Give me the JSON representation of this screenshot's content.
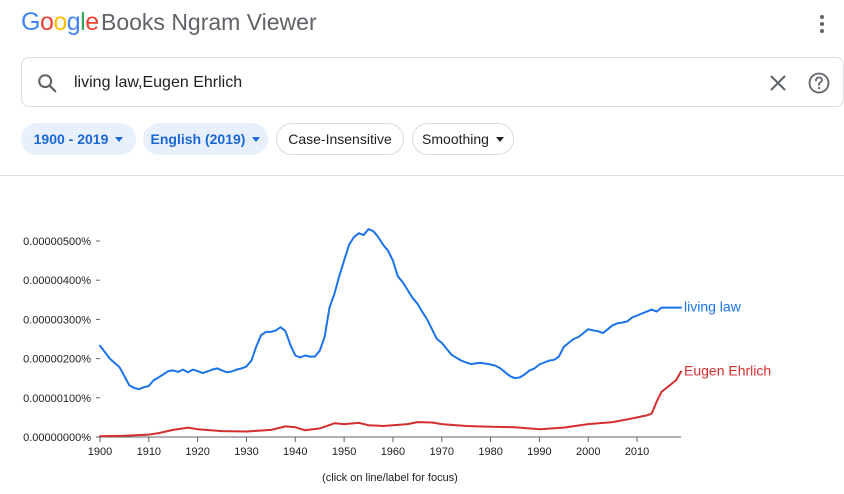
{
  "header": {
    "logo": {
      "g1": "G",
      "o1": "o",
      "o2": "o",
      "g2": "g",
      "l": "l",
      "e": "e"
    },
    "title": "Books Ngram Viewer",
    "menu_icon": "more-vert-icon"
  },
  "search": {
    "value": "living law,Eugen Ehrlich",
    "search_icon": "search-icon",
    "clear_icon": "close-icon",
    "help_icon": "help-icon"
  },
  "filters": {
    "years": "1900 - 2019",
    "corpus": "English (2019)",
    "case": "Case-Insensitive",
    "smoothing": "Smoothing"
  },
  "colors": {
    "living_law": "#1a73e8",
    "eugen_ehrlich": "#d32f2f",
    "chip_selected_bg": "#e8f0fe",
    "chip_selected_text": "#1967d2"
  },
  "chart_data": {
    "type": "line",
    "x_ticks": [
      "1900",
      "1910",
      "1920",
      "1930",
      "1940",
      "1950",
      "1960",
      "1970",
      "1980",
      "1990",
      "2000",
      "2010"
    ],
    "y_ticks": [
      "0.00000000%",
      "0.00000100%",
      "0.00000200%",
      "0.00000300%",
      "0.00000400%",
      "0.00000500%"
    ],
    "xlim": [
      1900,
      2019
    ],
    "ylim": [
      0,
      5.2
    ],
    "y_unit_note": "values in units of 0.000001%",
    "footer": "(click on line/label for focus)",
    "series": [
      {
        "name": "living law",
        "x": [
          1900,
          1902,
          1904,
          1905,
          1906,
          1907,
          1908,
          1909,
          1910,
          1911,
          1912,
          1913,
          1914,
          1915,
          1916,
          1917,
          1918,
          1919,
          1920,
          1921,
          1922,
          1923,
          1924,
          1925,
          1926,
          1927,
          1928,
          1929,
          1930,
          1931,
          1932,
          1933,
          1934,
          1935,
          1936,
          1937,
          1938,
          1939,
          1940,
          1941,
          1942,
          1943,
          1944,
          1945,
          1946,
          1947,
          1948,
          1949,
          1950,
          1951,
          1952,
          1953,
          1954,
          1955,
          1956,
          1957,
          1958,
          1959,
          1960,
          1961,
          1962,
          1963,
          1964,
          1965,
          1966,
          1967,
          1968,
          1969,
          1970,
          1971,
          1972,
          1973,
          1974,
          1975,
          1976,
          1977,
          1978,
          1979,
          1980,
          1981,
          1982,
          1983,
          1984,
          1985,
          1986,
          1987,
          1988,
          1989,
          1990,
          1991,
          1992,
          1993,
          1994,
          1995,
          1996,
          1997,
          1998,
          1999,
          2000,
          2001,
          2002,
          2003,
          2004,
          2005,
          2006,
          2007,
          2008,
          2009,
          2010,
          2011,
          2012,
          2013,
          2014,
          2015,
          2016,
          2017,
          2018,
          2019
        ],
        "values": [
          2.33,
          2.0,
          1.78,
          1.55,
          1.32,
          1.25,
          1.22,
          1.27,
          1.3,
          1.45,
          1.52,
          1.6,
          1.68,
          1.7,
          1.66,
          1.72,
          1.65,
          1.72,
          1.68,
          1.63,
          1.67,
          1.72,
          1.75,
          1.7,
          1.65,
          1.67,
          1.72,
          1.75,
          1.8,
          1.95,
          2.3,
          2.6,
          2.68,
          2.68,
          2.72,
          2.8,
          2.7,
          2.35,
          2.08,
          2.03,
          2.08,
          2.05,
          2.05,
          2.2,
          2.55,
          3.3,
          3.65,
          4.1,
          4.5,
          4.9,
          5.1,
          5.2,
          5.15,
          5.3,
          5.25,
          5.1,
          4.9,
          4.75,
          4.5,
          4.1,
          3.95,
          3.75,
          3.55,
          3.4,
          3.2,
          3.0,
          2.75,
          2.5,
          2.4,
          2.25,
          2.1,
          2.02,
          1.95,
          1.9,
          1.86,
          1.88,
          1.89,
          1.87,
          1.85,
          1.82,
          1.75,
          1.65,
          1.55,
          1.5,
          1.52,
          1.6,
          1.7,
          1.75,
          1.85,
          1.9,
          1.95,
          1.97,
          2.05,
          2.3,
          2.4,
          2.5,
          2.55,
          2.65,
          2.75,
          2.72,
          2.7,
          2.65,
          2.75,
          2.85,
          2.9,
          2.92,
          2.95,
          3.05,
          3.1,
          3.15,
          3.2,
          3.25,
          3.2,
          3.3,
          3.3,
          3.3,
          3.3,
          3.3
        ],
        "end_label": "living law"
      },
      {
        "name": "Eugen Ehrlich",
        "x": [
          1900,
          1905,
          1910,
          1912,
          1915,
          1918,
          1920,
          1925,
          1930,
          1935,
          1938,
          1940,
          1942,
          1945,
          1948,
          1950,
          1953,
          1955,
          1958,
          1960,
          1963,
          1965,
          1968,
          1970,
          1975,
          1980,
          1985,
          1990,
          1995,
          2000,
          2005,
          2008,
          2010,
          2012,
          2013,
          2014,
          2015,
          2016,
          2017,
          2018,
          2019
        ],
        "values": [
          0.02,
          0.03,
          0.06,
          0.1,
          0.18,
          0.24,
          0.2,
          0.15,
          0.14,
          0.18,
          0.27,
          0.25,
          0.17,
          0.22,
          0.35,
          0.33,
          0.36,
          0.3,
          0.28,
          0.3,
          0.33,
          0.38,
          0.37,
          0.33,
          0.28,
          0.26,
          0.25,
          0.2,
          0.24,
          0.33,
          0.38,
          0.45,
          0.5,
          0.55,
          0.6,
          0.9,
          1.15,
          1.25,
          1.35,
          1.45,
          1.67
        ],
        "end_label": "Eugen Ehrlich"
      }
    ]
  }
}
